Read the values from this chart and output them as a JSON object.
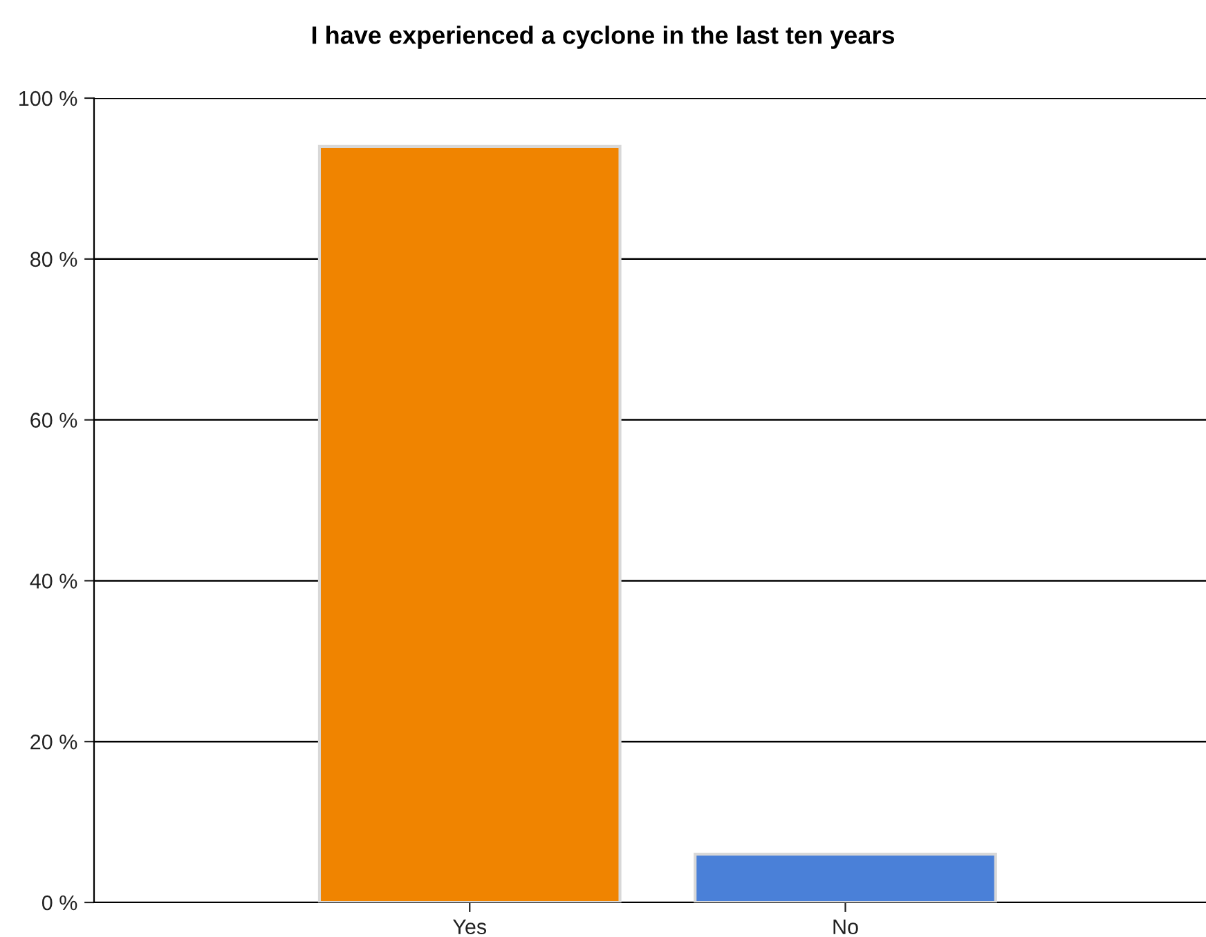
{
  "chart_data": {
    "type": "bar",
    "title": "I have experienced a cyclone in the last ten years",
    "categories": [
      "Yes",
      "No"
    ],
    "values": [
      94,
      6
    ],
    "colors": [
      "#f08400",
      "#4a80d8"
    ],
    "ylim": [
      0,
      100
    ],
    "yticks": [
      {
        "value": 0,
        "label": "0 %"
      },
      {
        "value": 20,
        "label": "20 %"
      },
      {
        "value": 40,
        "label": "40 %"
      },
      {
        "value": 60,
        "label": "60 %"
      },
      {
        "value": 80,
        "label": "80 %"
      },
      {
        "value": 100,
        "label": "100 %"
      }
    ],
    "grid": "y",
    "legend": false
  }
}
